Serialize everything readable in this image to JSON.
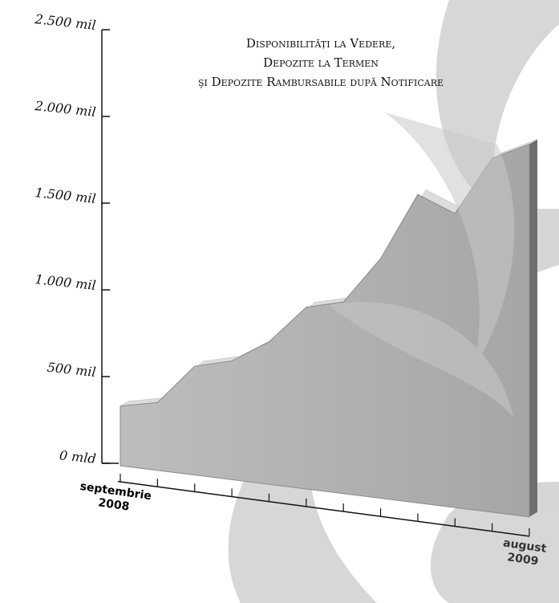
{
  "chart_data": {
    "type": "area",
    "title": [
      "Disponibilități la Vedere,",
      "Depozite la Termen",
      "şi Depozite Rambursabile după Notificare"
    ],
    "categories": [
      "septembrie 2008",
      null,
      null,
      null,
      null,
      null,
      null,
      null,
      null,
      null,
      null,
      "august 2009"
    ],
    "values": [
      330,
      350,
      560,
      590,
      700,
      900,
      930,
      1180,
      1550,
      1440,
      1760,
      1840
    ],
    "color": "#a6a6a6",
    "ylim": [
      0,
      2500
    ],
    "yticks": [
      {
        "value": 0,
        "label": "0 mld"
      },
      {
        "value": 500,
        "label": "500 mil"
      },
      {
        "value": 1000,
        "label": "1.000 mil"
      },
      {
        "value": 1500,
        "label": "1.500 mil"
      },
      {
        "value": 2000,
        "label": "2.000 mil"
      },
      {
        "value": 2500,
        "label": "2.500 mil"
      }
    ]
  }
}
